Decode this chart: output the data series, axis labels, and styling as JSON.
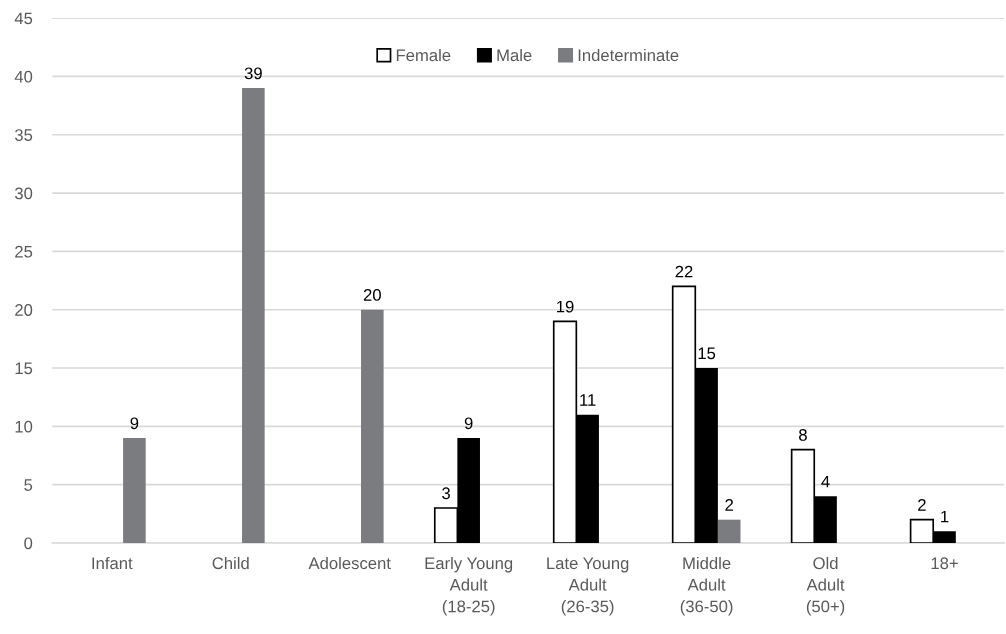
{
  "chart_data": {
    "type": "bar",
    "categories": [
      "Infant",
      "Child",
      "Adolescent",
      "Early Young\nAdult\n(18-25)",
      "Late Young\nAdult\n(26-35)",
      "Middle\nAdult\n(36-50)",
      "Old\nAdult\n(50+)",
      "18+"
    ],
    "series": [
      {
        "name": "Female",
        "color": "#ffffff",
        "values": [
          null,
          null,
          null,
          3,
          19,
          22,
          8,
          2
        ]
      },
      {
        "name": "Male",
        "color": "#000000",
        "values": [
          null,
          null,
          null,
          9,
          11,
          15,
          4,
          1
        ]
      },
      {
        "name": "Indeterminate",
        "color": "#7b7c80",
        "values": [
          9,
          39,
          20,
          null,
          null,
          2,
          null,
          null
        ]
      }
    ],
    "ylim": [
      0,
      45
    ],
    "yticks": [
      0,
      5,
      10,
      15,
      20,
      25,
      30,
      35,
      40,
      45
    ],
    "grid": "y",
    "legend": "top",
    "data_labels": true
  }
}
